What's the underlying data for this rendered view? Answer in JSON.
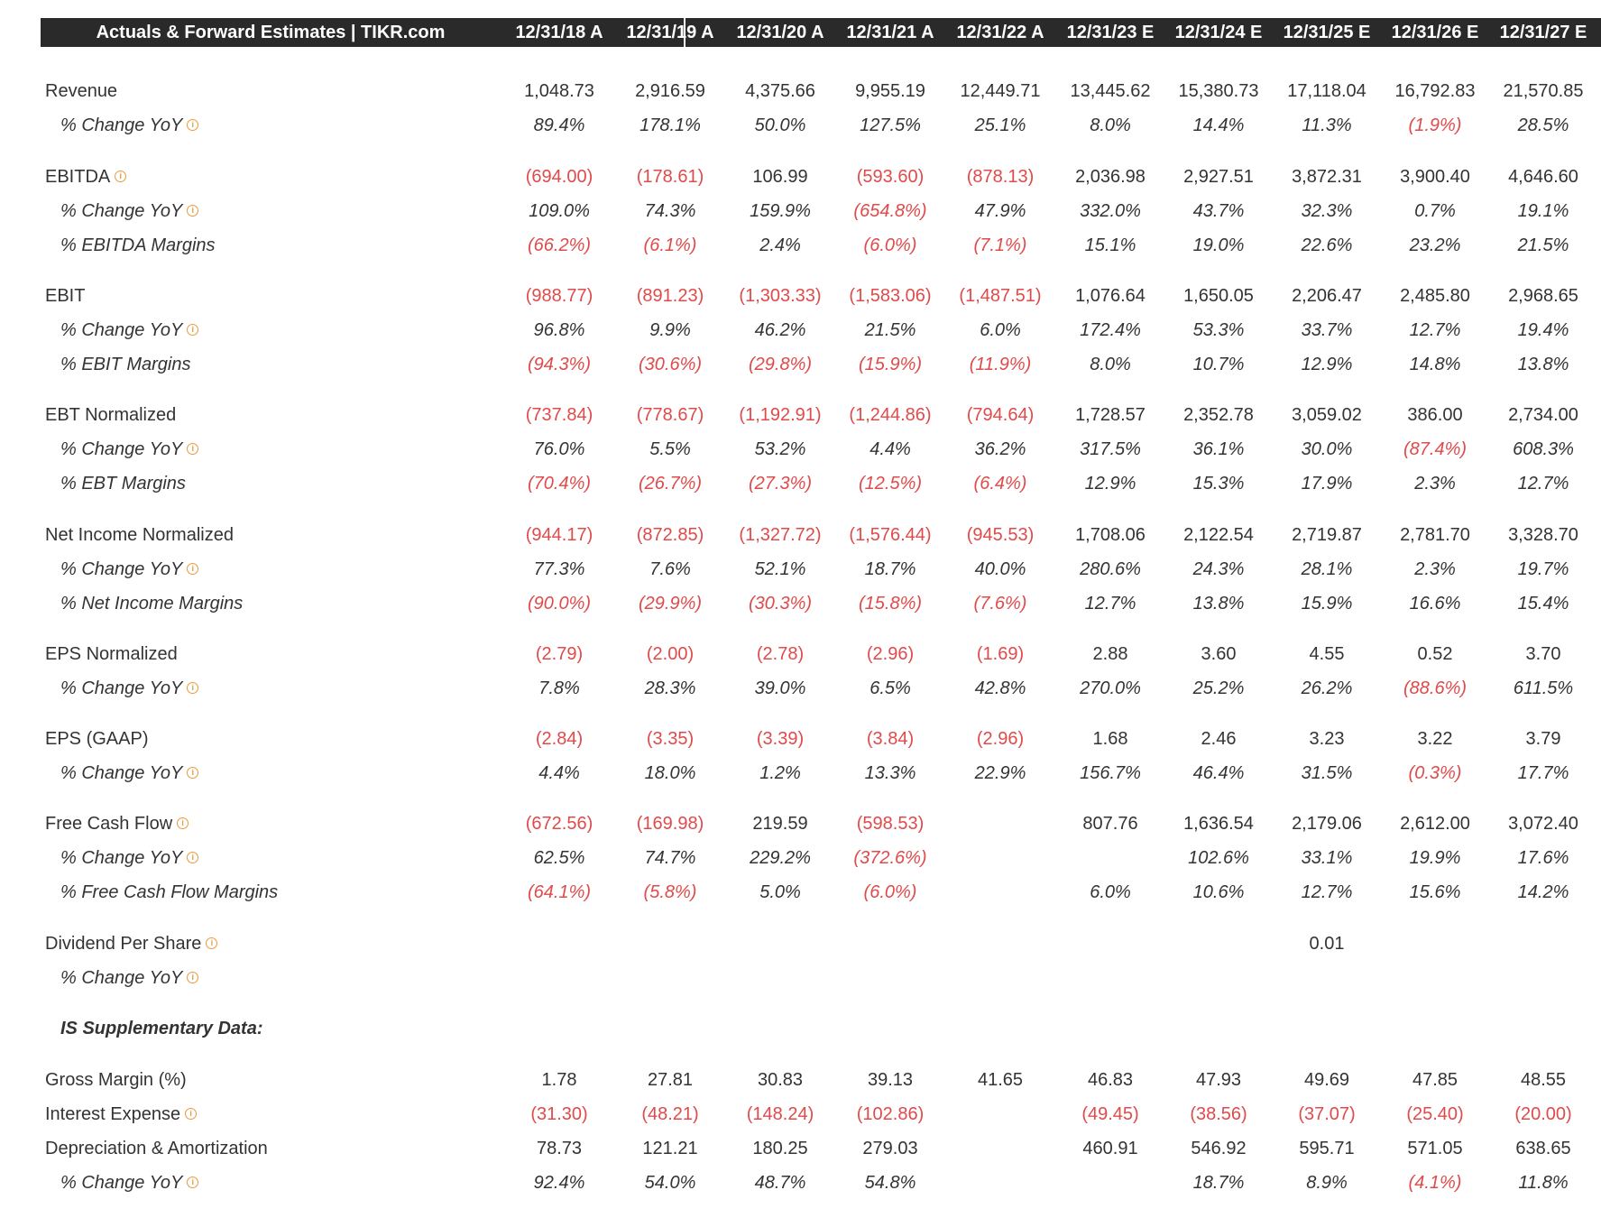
{
  "header": {
    "title": "Actuals & Forward Estimates | TIKR.com",
    "periods": [
      "12/31/18 A",
      "12/31/19 A",
      "12/31/20 A",
      "12/31/21 A",
      "12/31/22 A",
      "12/31/23 E",
      "12/31/24 E",
      "12/31/25 E",
      "12/31/26 E",
      "12/31/27 E"
    ]
  },
  "colors": {
    "header_bg": "#2a2a2a",
    "negative": "#e04a4a",
    "info_icon": "#e89a3c",
    "text": "#333333"
  },
  "rows": [
    {
      "label": "Revenue",
      "type": "main",
      "info": false,
      "values": [
        "1,048.73",
        "2,916.59",
        "4,375.66",
        "9,955.19",
        "12,449.71",
        "13,445.62",
        "15,380.73",
        "17,118.04",
        "16,792.83",
        "21,570.85"
      ]
    },
    {
      "label": "% Change YoY",
      "type": "sub",
      "info": true,
      "values": [
        "89.4%",
        "178.1%",
        "50.0%",
        "127.5%",
        "25.1%",
        "8.0%",
        "14.4%",
        "11.3%",
        "(1.9%)",
        "28.5%"
      ]
    },
    {
      "label": "EBITDA",
      "type": "main",
      "info": true,
      "values": [
        "(694.00)",
        "(178.61)",
        "106.99",
        "(593.60)",
        "(878.13)",
        "2,036.98",
        "2,927.51",
        "3,872.31",
        "3,900.40",
        "4,646.60"
      ]
    },
    {
      "label": "% Change YoY",
      "type": "sub",
      "info": true,
      "values": [
        "109.0%",
        "74.3%",
        "159.9%",
        "(654.8%)",
        "47.9%",
        "332.0%",
        "43.7%",
        "32.3%",
        "0.7%",
        "19.1%"
      ]
    },
    {
      "label": "% EBITDA Margins",
      "type": "sub",
      "info": false,
      "values": [
        "(66.2%)",
        "(6.1%)",
        "2.4%",
        "(6.0%)",
        "(7.1%)",
        "15.1%",
        "19.0%",
        "22.6%",
        "23.2%",
        "21.5%"
      ]
    },
    {
      "label": "EBIT",
      "type": "main",
      "info": false,
      "values": [
        "(988.77)",
        "(891.23)",
        "(1,303.33)",
        "(1,583.06)",
        "(1,487.51)",
        "1,076.64",
        "1,650.05",
        "2,206.47",
        "2,485.80",
        "2,968.65"
      ]
    },
    {
      "label": "% Change YoY",
      "type": "sub",
      "info": true,
      "values": [
        "96.8%",
        "9.9%",
        "46.2%",
        "21.5%",
        "6.0%",
        "172.4%",
        "53.3%",
        "33.7%",
        "12.7%",
        "19.4%"
      ]
    },
    {
      "label": "% EBIT Margins",
      "type": "sub",
      "info": false,
      "values": [
        "(94.3%)",
        "(30.6%)",
        "(29.8%)",
        "(15.9%)",
        "(11.9%)",
        "8.0%",
        "10.7%",
        "12.9%",
        "14.8%",
        "13.8%"
      ]
    },
    {
      "label": "EBT Normalized",
      "type": "main",
      "info": false,
      "values": [
        "(737.84)",
        "(778.67)",
        "(1,192.91)",
        "(1,244.86)",
        "(794.64)",
        "1,728.57",
        "2,352.78",
        "3,059.02",
        "386.00",
        "2,734.00"
      ]
    },
    {
      "label": "% Change YoY",
      "type": "sub",
      "info": true,
      "values": [
        "76.0%",
        "5.5%",
        "53.2%",
        "4.4%",
        "36.2%",
        "317.5%",
        "36.1%",
        "30.0%",
        "(87.4%)",
        "608.3%"
      ]
    },
    {
      "label": "% EBT Margins",
      "type": "sub",
      "info": false,
      "values": [
        "(70.4%)",
        "(26.7%)",
        "(27.3%)",
        "(12.5%)",
        "(6.4%)",
        "12.9%",
        "15.3%",
        "17.9%",
        "2.3%",
        "12.7%"
      ]
    },
    {
      "label": "Net Income Normalized",
      "type": "main",
      "info": false,
      "values": [
        "(944.17)",
        "(872.85)",
        "(1,327.72)",
        "(1,576.44)",
        "(945.53)",
        "1,708.06",
        "2,122.54",
        "2,719.87",
        "2,781.70",
        "3,328.70"
      ]
    },
    {
      "label": "% Change YoY",
      "type": "sub",
      "info": true,
      "values": [
        "77.3%",
        "7.6%",
        "52.1%",
        "18.7%",
        "40.0%",
        "280.6%",
        "24.3%",
        "28.1%",
        "2.3%",
        "19.7%"
      ]
    },
    {
      "label": "% Net Income Margins",
      "type": "sub",
      "info": false,
      "values": [
        "(90.0%)",
        "(29.9%)",
        "(30.3%)",
        "(15.8%)",
        "(7.6%)",
        "12.7%",
        "13.8%",
        "15.9%",
        "16.6%",
        "15.4%"
      ]
    },
    {
      "label": "EPS Normalized",
      "type": "main",
      "info": false,
      "values": [
        "(2.79)",
        "(2.00)",
        "(2.78)",
        "(2.96)",
        "(1.69)",
        "2.88",
        "3.60",
        "4.55",
        "0.52",
        "3.70"
      ]
    },
    {
      "label": "% Change YoY",
      "type": "sub",
      "info": true,
      "values": [
        "7.8%",
        "28.3%",
        "39.0%",
        "6.5%",
        "42.8%",
        "270.0%",
        "25.2%",
        "26.2%",
        "(88.6%)",
        "611.5%"
      ]
    },
    {
      "label": "EPS (GAAP)",
      "type": "main",
      "info": false,
      "values": [
        "(2.84)",
        "(3.35)",
        "(3.39)",
        "(3.84)",
        "(2.96)",
        "1.68",
        "2.46",
        "3.23",
        "3.22",
        "3.79"
      ]
    },
    {
      "label": "% Change YoY",
      "type": "sub",
      "info": true,
      "values": [
        "4.4%",
        "18.0%",
        "1.2%",
        "13.3%",
        "22.9%",
        "156.7%",
        "46.4%",
        "31.5%",
        "(0.3%)",
        "17.7%"
      ]
    },
    {
      "label": "Free Cash Flow",
      "type": "main",
      "info": true,
      "values": [
        "(672.56)",
        "(169.98)",
        "219.59",
        "(598.53)",
        "",
        "807.76",
        "1,636.54",
        "2,179.06",
        "2,612.00",
        "3,072.40"
      ]
    },
    {
      "label": "% Change YoY",
      "type": "sub",
      "info": true,
      "values": [
        "62.5%",
        "74.7%",
        "229.2%",
        "(372.6%)",
        "",
        "",
        "102.6%",
        "33.1%",
        "19.9%",
        "17.6%"
      ]
    },
    {
      "label": "% Free Cash Flow Margins",
      "type": "sub",
      "info": false,
      "values": [
        "(64.1%)",
        "(5.8%)",
        "5.0%",
        "(6.0%)",
        "",
        "6.0%",
        "10.6%",
        "12.7%",
        "15.6%",
        "14.2%"
      ]
    },
    {
      "label": "Dividend Per Share",
      "type": "main",
      "info": true,
      "values": [
        "",
        "",
        "",
        "",
        "",
        "",
        "",
        "0.01",
        "",
        ""
      ]
    },
    {
      "label": "% Change YoY",
      "type": "sub",
      "info": true,
      "values": [
        "",
        "",
        "",
        "",
        "",
        "",
        "",
        "",
        "",
        ""
      ]
    },
    {
      "label": "IS Supplementary Data:",
      "type": "header-italic",
      "info": false,
      "values": []
    },
    {
      "label": "Gross Margin (%)",
      "type": "main",
      "info": false,
      "values": [
        "1.78",
        "27.81",
        "30.83",
        "39.13",
        "41.65",
        "46.83",
        "47.93",
        "49.69",
        "47.85",
        "48.55"
      ]
    },
    {
      "label": "Interest Expense",
      "type": "main",
      "info": true,
      "values": [
        "(31.30)",
        "(48.21)",
        "(148.24)",
        "(102.86)",
        "",
        "(49.45)",
        "(38.56)",
        "(37.07)",
        "(25.40)",
        "(20.00)"
      ]
    },
    {
      "label": "Depreciation & Amortization",
      "type": "main",
      "info": false,
      "values": [
        "78.73",
        "121.21",
        "180.25",
        "279.03",
        "",
        "460.91",
        "546.92",
        "595.71",
        "571.05",
        "638.65"
      ]
    },
    {
      "label": "% Change YoY",
      "type": "sub",
      "info": true,
      "values": [
        "92.4%",
        "54.0%",
        "48.7%",
        "54.8%",
        "",
        "",
        "18.7%",
        "8.9%",
        "(4.1%)",
        "11.8%"
      ]
    }
  ]
}
